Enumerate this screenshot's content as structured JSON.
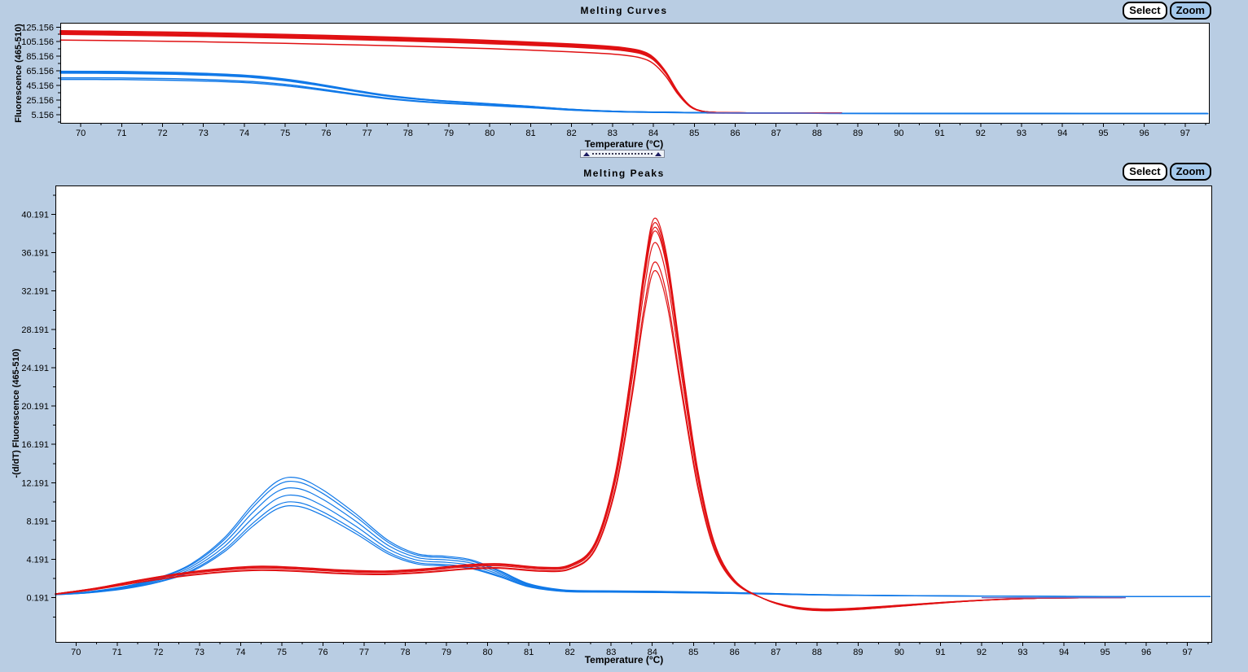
{
  "app": {
    "background": "#b9cde3"
  },
  "buttons": {
    "select_label": "Select",
    "zoom_label": "Zoom"
  },
  "panels": [
    {
      "title": "Melting Curves",
      "xlabel": "Temperature (°C)",
      "ylabel": "Fluorescence (465-510)"
    },
    {
      "title": "Melting Peaks",
      "xlabel": "Temperature (°C)",
      "ylabel": "-(d/dT) Fluorescence (465-510)"
    }
  ],
  "colors": {
    "red_series": "#e01113",
    "blue_series": "#1179e8",
    "overlap_purple": "#7d5fb2",
    "plot_background": "#ffffff",
    "axis": "#000000",
    "zoom_button_fill": "#a4c9ec",
    "select_button_fill": "#ffffff"
  },
  "chart_data": [
    {
      "id": "melting_curves",
      "type": "line",
      "title": "Melting Curves",
      "xlabel": "Temperature (°C)",
      "ylabel": "Fluorescence (465-510)",
      "legend": "none",
      "grid": false,
      "x_range": [
        69.5,
        97.6
      ],
      "y_range": [
        -7,
        131
      ],
      "x_ticks": [
        70,
        71,
        72,
        73,
        74,
        75,
        76,
        77,
        78,
        79,
        80,
        81,
        82,
        83,
        84,
        85,
        86,
        87,
        88,
        89,
        90,
        91,
        92,
        93,
        94,
        95,
        96,
        97
      ],
      "y_ticks": [
        {
          "label": "125.156",
          "value": 125.156
        },
        {
          "label": "105.156",
          "value": 105.156
        },
        {
          "label": "85.156",
          "value": 85.156
        },
        {
          "label": "65.156",
          "value": 65.156
        },
        {
          "label": "45.156",
          "value": 45.156
        },
        {
          "label": "25.156",
          "value": 25.156
        },
        {
          "label": "5.156",
          "value": 5.156
        }
      ],
      "series_groups": [
        {
          "name": "red-melting-curves",
          "color": "#e01113",
          "stroke_width": 1.5,
          "baseline": 7.5,
          "base_points": [
            [
              69.5,
              117.5
            ],
            [
              71,
              116.5
            ],
            [
              73,
              114.8
            ],
            [
              75,
              112.5
            ],
            [
              77,
              109.8
            ],
            [
              79,
              106.5
            ],
            [
              80,
              104.5
            ],
            [
              81,
              102.3
            ],
            [
              82,
              99.8
            ],
            [
              82.8,
              97.2
            ],
            [
              83.3,
              94.6
            ],
            [
              83.7,
              90.5
            ],
            [
              84.0,
              82
            ],
            [
              84.3,
              63
            ],
            [
              84.6,
              36
            ],
            [
              84.9,
              17
            ],
            [
              85.2,
              10
            ],
            [
              85.6,
              8.2
            ],
            [
              86.3,
              7.8
            ],
            [
              87.5,
              7.6
            ],
            [
              88.6,
              7.5
            ]
          ],
          "replicate_scales": [
            1.025,
            1.012,
            1.0,
            0.99,
            0.978,
            0.908
          ]
        },
        {
          "name": "blue-melting-curves",
          "color": "#1179e8",
          "stroke_width": 1.5,
          "baseline": 6.8,
          "base_points": [
            [
              69.5,
              63.5
            ],
            [
              71,
              63.2
            ],
            [
              72.3,
              62
            ],
            [
              73.3,
              60.2
            ],
            [
              74.2,
              57.5
            ],
            [
              75,
              53
            ],
            [
              75.8,
              46.5
            ],
            [
              76.6,
              39
            ],
            [
              77.4,
              32
            ],
            [
              78.2,
              27
            ],
            [
              79,
              23.5
            ],
            [
              80,
              20
            ],
            [
              81,
              16.5
            ],
            [
              82,
              12.5
            ],
            [
              83,
              10
            ],
            [
              84,
              8.8
            ],
            [
              85.5,
              7.8
            ],
            [
              88,
              7.2
            ],
            [
              92,
              6.9
            ],
            [
              97.55,
              6.8
            ]
          ],
          "replicate_scales": [
            1.02,
            1.005,
            0.99,
            0.975,
            0.862,
            0.825
          ]
        }
      ],
      "overlap_segments": [
        {
          "color": "#7d5fb2",
          "stroke_width": 1.4,
          "points": [
            [
              85.3,
              7.4
            ],
            [
              88.6,
              7.4
            ]
          ]
        }
      ]
    },
    {
      "id": "melting_peaks",
      "type": "line",
      "title": "Melting Peaks",
      "xlabel": "Temperature (°C)",
      "ylabel": "-(d/dT) Fluorescence (465-510)",
      "legend": "none",
      "grid": false,
      "x_range": [
        69.5,
        97.6
      ],
      "y_range": [
        -4.5,
        43.2
      ],
      "x_ticks": [
        70,
        71,
        72,
        73,
        74,
        75,
        76,
        77,
        78,
        79,
        80,
        81,
        82,
        83,
        84,
        85,
        86,
        87,
        88,
        89,
        90,
        91,
        92,
        93,
        94,
        95,
        96,
        97
      ],
      "y_ticks": [
        {
          "label": "40.191",
          "value": 40.191
        },
        {
          "label": "36.191",
          "value": 36.191
        },
        {
          "label": "32.191",
          "value": 32.191
        },
        {
          "label": "28.191",
          "value": 28.191
        },
        {
          "label": "24.191",
          "value": 24.191
        },
        {
          "label": "20.191",
          "value": 20.191
        },
        {
          "label": "16.191",
          "value": 16.191
        },
        {
          "label": "12.191",
          "value": 12.191
        },
        {
          "label": "8.191",
          "value": 8.191
        },
        {
          "label": "4.191",
          "value": 4.191
        },
        {
          "label": "0.191",
          "value": 0.191
        }
      ],
      "series_groups": [
        {
          "name": "blue-melting-peaks",
          "color": "#1179e8",
          "stroke_width": 1.2,
          "baseline": 0.3,
          "base_points": [
            [
              69.5,
              0.55
            ],
            [
              70.3,
              0.8
            ],
            [
              71.2,
              1.35
            ],
            [
              72.0,
              2.2
            ],
            [
              72.8,
              3.6
            ],
            [
              73.6,
              6.2
            ],
            [
              74.3,
              9.6
            ],
            [
              74.9,
              11.9
            ],
            [
              75.4,
              12.2
            ],
            [
              76.0,
              11.0
            ],
            [
              76.8,
              8.6
            ],
            [
              77.6,
              5.9
            ],
            [
              78.3,
              4.6
            ],
            [
              79.0,
              4.35
            ],
            [
              79.6,
              4.0
            ],
            [
              80.3,
              2.9
            ],
            [
              81.0,
              1.6
            ],
            [
              81.8,
              1.0
            ],
            [
              82.6,
              0.9
            ],
            [
              84.0,
              0.85
            ],
            [
              86.0,
              0.72
            ],
            [
              88.0,
              0.52
            ],
            [
              90.0,
              0.42
            ],
            [
              93.0,
              0.35
            ],
            [
              97.55,
              0.3
            ]
          ],
          "replicate_scales": [
            1.04,
            1.005,
            0.948,
            0.885,
            0.826,
            0.792
          ]
        },
        {
          "name": "red-melting-peaks",
          "color": "#e01113",
          "stroke_width": 1.2,
          "baseline": 0.19,
          "base_points": [
            [
              69.5,
              0.6
            ],
            [
              70.5,
              1.2
            ],
            [
              71.5,
              2.0
            ],
            [
              72.5,
              2.7
            ],
            [
              73.5,
              3.2
            ],
            [
              74.5,
              3.45
            ],
            [
              75.5,
              3.3
            ],
            [
              76.5,
              3.05
            ],
            [
              77.5,
              2.95
            ],
            [
              78.5,
              3.2
            ],
            [
              79.5,
              3.6
            ],
            [
              80.3,
              3.7
            ],
            [
              81.3,
              3.35
            ],
            [
              82.0,
              3.6
            ],
            [
              82.6,
              5.8
            ],
            [
              83.1,
              13
            ],
            [
              83.5,
              24
            ],
            [
              83.8,
              34
            ],
            [
              84.05,
              39.3
            ],
            [
              84.35,
              35.5
            ],
            [
              84.7,
              25
            ],
            [
              85.1,
              13.5
            ],
            [
              85.5,
              6
            ],
            [
              86.0,
              2.0
            ],
            [
              86.7,
              0.1
            ],
            [
              87.4,
              -0.85
            ],
            [
              88.1,
              -1.15
            ],
            [
              88.9,
              -1.05
            ],
            [
              90.0,
              -0.7
            ],
            [
              91.2,
              -0.3
            ],
            [
              92.4,
              0.0
            ],
            [
              93.6,
              0.15
            ],
            [
              95.4,
              0.19
            ]
          ],
          "replicate_scales": [
            1.012,
            1.0,
            0.988,
            0.978,
            0.947,
            0.895,
            0.872
          ]
        }
      ],
      "overlap_segments": [
        {
          "color": "#7d5fb2",
          "stroke_width": 1.4,
          "points": [
            [
              92.0,
              0.19
            ],
            [
              95.5,
              0.19
            ]
          ]
        }
      ]
    }
  ]
}
